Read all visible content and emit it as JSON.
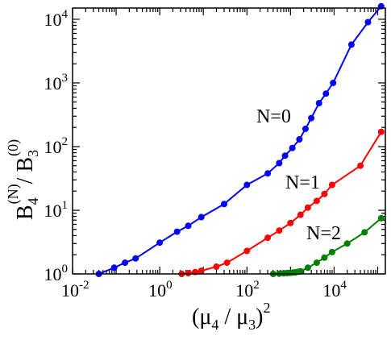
{
  "chart_data": {
    "type": "line",
    "xscale": "log",
    "yscale": "log",
    "xlim": [
      0.01,
      150000
    ],
    "ylim": [
      1,
      15000
    ],
    "x_ticks": [
      {
        "base": "10",
        "exp": "-2"
      },
      {
        "base": "10",
        "exp": "0"
      },
      {
        "base": "10",
        "exp": "2"
      },
      {
        "base": "10",
        "exp": "4"
      }
    ],
    "y_ticks": [
      {
        "base": "10",
        "exp": "0"
      },
      {
        "base": "10",
        "exp": "1"
      },
      {
        "base": "10",
        "exp": "2"
      },
      {
        "base": "10",
        "exp": "3"
      },
      {
        "base": "10",
        "exp": "4"
      }
    ],
    "xlabel": {
      "open": "(μ",
      "sub1": "4",
      "slash": " / μ",
      "sub2": "3",
      "close": ")",
      "sup": "2"
    },
    "ylabel": {
      "base1": "B",
      "sub1": "4",
      "sup1": "(N)",
      "slash": "/ B",
      "sub2": "3",
      "sup2": "(0)"
    },
    "series": [
      {
        "name": "N=0",
        "color": "#0000ff",
        "x": [
          0.04,
          0.09,
          0.16,
          0.28,
          1.0,
          2.5,
          4.5,
          9,
          30,
          100,
          300,
          550,
          750,
          1100,
          1600,
          2200,
          3000,
          4500,
          6500,
          9500,
          25000,
          60000,
          120000
        ],
        "y": [
          1.0,
          1.25,
          1.5,
          1.75,
          3.1,
          4.6,
          5.7,
          7.8,
          12.5,
          25,
          38,
          55,
          72,
          95,
          130,
          190,
          280,
          480,
          680,
          1000,
          4000,
          9000,
          16000
        ]
      },
      {
        "name": "N=1",
        "color": "#ff0000",
        "x": [
          3.2,
          4.5,
          6.5,
          9,
          20,
          35,
          100,
          300,
          550,
          1000,
          1700,
          2500,
          4000,
          6000,
          9000,
          40000,
          120000
        ],
        "y": [
          1.0,
          1.03,
          1.07,
          1.12,
          1.3,
          1.5,
          2.3,
          3.7,
          4.8,
          6.3,
          8.5,
          11,
          14,
          18,
          25,
          50,
          170
        ]
      },
      {
        "name": "N=2",
        "color": "#008000",
        "x": [
          400,
          550,
          700,
          850,
          1000,
          1150,
          1300,
          1500,
          1700,
          2500,
          4000,
          6000,
          9000,
          20000,
          50000,
          120000
        ],
        "y": [
          1.0,
          1.01,
          1.02,
          1.03,
          1.04,
          1.05,
          1.06,
          1.08,
          1.1,
          1.25,
          1.5,
          1.8,
          2.2,
          3.0,
          4.5,
          7.5
        ]
      }
    ],
    "annotations": [
      "N=0",
      "N=1",
      "N=2"
    ]
  }
}
